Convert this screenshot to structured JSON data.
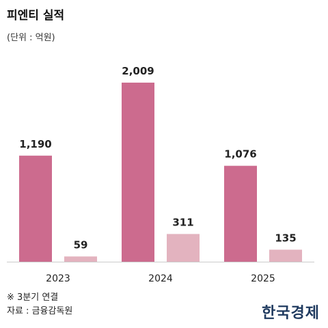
{
  "header": {
    "title": "피엔티 실적",
    "unit": "(단위 : 억원)"
  },
  "footer": {
    "note": "※ 3분기 연결",
    "source": "자료 : 금융감독원",
    "logo": "한국경제"
  },
  "colors": {
    "primary_bar": "#cc6b8e",
    "secondary_bar": "#e3b3bf",
    "axis": "#cccccc"
  },
  "chart_data": {
    "type": "bar",
    "categories": [
      "2023",
      "2024",
      "2025"
    ],
    "series": [
      {
        "values": [
          1190,
          2009,
          1076
        ],
        "labels": [
          "1,190",
          "2,009",
          "1,076"
        ]
      },
      {
        "values": [
          59,
          311,
          135
        ],
        "labels": [
          "59",
          "311",
          "135"
        ]
      }
    ],
    "ylim": [
      0,
      2200
    ],
    "grid": false,
    "legend": "none"
  }
}
